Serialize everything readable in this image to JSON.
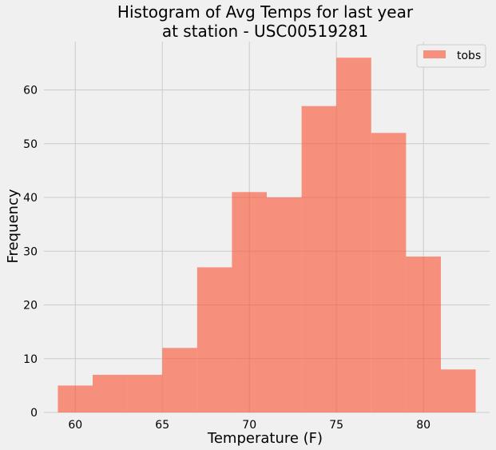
{
  "chart_data": {
    "type": "bar",
    "subtype": "histogram",
    "title": "Histogram of Avg Temps for last year",
    "subtitle": "at station - USC00519281",
    "xlabel": "Temperature (F)",
    "ylabel": "Frequency",
    "xlim": [
      58.2,
      83.8
    ],
    "ylim": [
      0,
      69
    ],
    "xticks": [
      60,
      65,
      70,
      75,
      80
    ],
    "yticks": [
      0,
      10,
      20,
      30,
      40,
      50,
      60
    ],
    "grid": true,
    "legend_position": "top-right",
    "bar_color": "#fc4f30",
    "series": [
      {
        "name": "tobs",
        "bin_edges": [
          59,
          61,
          63,
          65,
          67,
          69,
          71,
          73,
          75,
          77,
          79,
          81,
          83
        ],
        "values": [
          5,
          7,
          7,
          12,
          27,
          41,
          40,
          57,
          66,
          52,
          29,
          8
        ]
      }
    ]
  }
}
